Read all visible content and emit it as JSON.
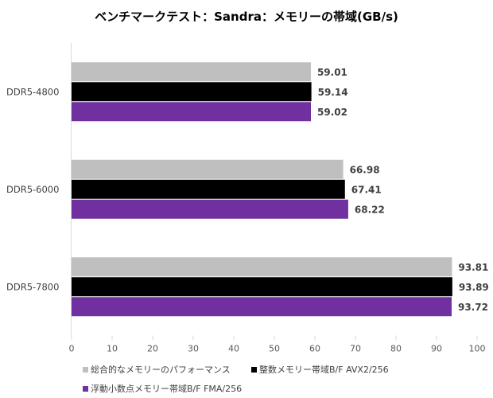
{
  "chart_data": {
    "type": "bar",
    "orientation": "horizontal",
    "title": "ベンチマークテスト：Sandra：メモリーの帯域(GB/s)",
    "categories": [
      "DDR5-4800",
      "DDR5-6000",
      "DDR5-7800"
    ],
    "series": [
      {
        "name": "総合的なメモリーのパフォーマンス",
        "color": "#bfbfbf",
        "values": [
          59.01,
          66.98,
          93.81
        ],
        "labels": [
          "59.01",
          "66.98",
          "93.81"
        ]
      },
      {
        "name": "整数メモリー帯域B/F AVX2/256",
        "color": "#000000",
        "values": [
          59.14,
          67.41,
          93.89
        ],
        "labels": [
          "59.14",
          "67.41",
          "93.89"
        ]
      },
      {
        "name": "浮動小数点メモリー帯域B/F FMA/256",
        "color": "#7030a0",
        "values": [
          59.02,
          68.22,
          93.72
        ],
        "labels": [
          "59.02",
          "68.22",
          "93.72"
        ]
      }
    ],
    "xlim": [
      0,
      100
    ],
    "xticks": [
      "0",
      "10",
      "20",
      "30",
      "40",
      "50",
      "60",
      "70",
      "80",
      "90",
      "100"
    ],
    "xlabel": "",
    "ylabel": "",
    "grid": false,
    "legend_position": "bottom"
  }
}
